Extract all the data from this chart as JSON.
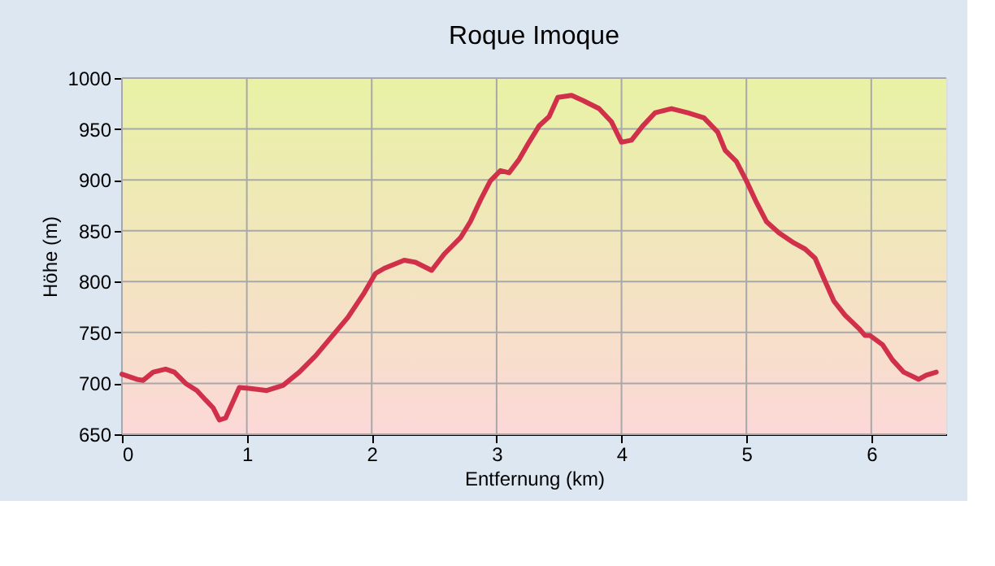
{
  "chart_data": {
    "type": "line",
    "title": "Roque Imoque",
    "xlabel": "Entfernung (km)",
    "ylabel": "Höhe (m)",
    "x": [
      0,
      0.12,
      0.17,
      0.25,
      0.35,
      0.42,
      0.51,
      0.6,
      0.66,
      0.73,
      0.78,
      0.83,
      0.9,
      0.94,
      1.03,
      1.16,
      1.29,
      1.42,
      1.55,
      1.68,
      1.81,
      1.94,
      2.03,
      2.1,
      2.26,
      2.35,
      2.48,
      2.58,
      2.71,
      2.79,
      2.87,
      2.95,
      3.03,
      3.1,
      3.18,
      3.26,
      3.34,
      3.42,
      3.49,
      3.6,
      3.69,
      3.82,
      3.92,
      4.0,
      4.08,
      4.17,
      4.27,
      4.4,
      4.53,
      4.66,
      4.77,
      4.83,
      4.92,
      5.0,
      5.08,
      5.16,
      5.26,
      5.38,
      5.47,
      5.55,
      5.62,
      5.7,
      5.79,
      5.9,
      5.95,
      5.99,
      6.09,
      6.17,
      6.26,
      6.38,
      6.44,
      6.52
    ],
    "series": [
      {
        "color": "#d0304a",
        "values": [
          709,
          704,
          703,
          711,
          714,
          711,
          700,
          693,
          685,
          676,
          664,
          666,
          685,
          696,
          695,
          693,
          698,
          711,
          727,
          746,
          765,
          789,
          808,
          813,
          821,
          819,
          811,
          827,
          843,
          859,
          880,
          899,
          909,
          907,
          920,
          937,
          953,
          962,
          981,
          983,
          978,
          970,
          957,
          937,
          939,
          953,
          966,
          970,
          966,
          961,
          947,
          929,
          918,
          899,
          878,
          859,
          848,
          838,
          832,
          823,
          803,
          781,
          767,
          754,
          747,
          747,
          738,
          723,
          711,
          704,
          708,
          711
        ]
      }
    ],
    "xlim": [
      0,
      6.6
    ],
    "xticks": [
      0,
      1,
      2,
      3,
      4,
      5,
      6
    ],
    "ylim": [
      650,
      1000
    ],
    "yticks": [
      650,
      700,
      750,
      800,
      850,
      900,
      950,
      1000
    ],
    "grid": true,
    "marker": "none",
    "line_style": "solid"
  }
}
